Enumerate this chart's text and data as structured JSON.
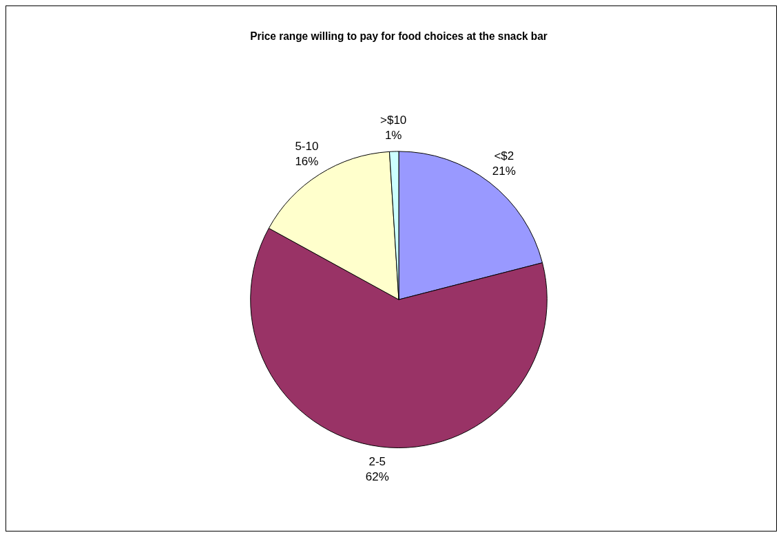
{
  "chart_data": {
    "type": "pie",
    "title": "Price range willing to pay for food choices at the snack bar",
    "categories": [
      "<$2",
      "2-5",
      "5-10",
      ">$10"
    ],
    "values": [
      21,
      62,
      16,
      1
    ],
    "value_labels": [
      "21%",
      "62%",
      "16%",
      "1%"
    ],
    "colors": [
      "#9999ff",
      "#993366",
      "#ffffcc",
      "#ccffff"
    ],
    "legend": false
  }
}
